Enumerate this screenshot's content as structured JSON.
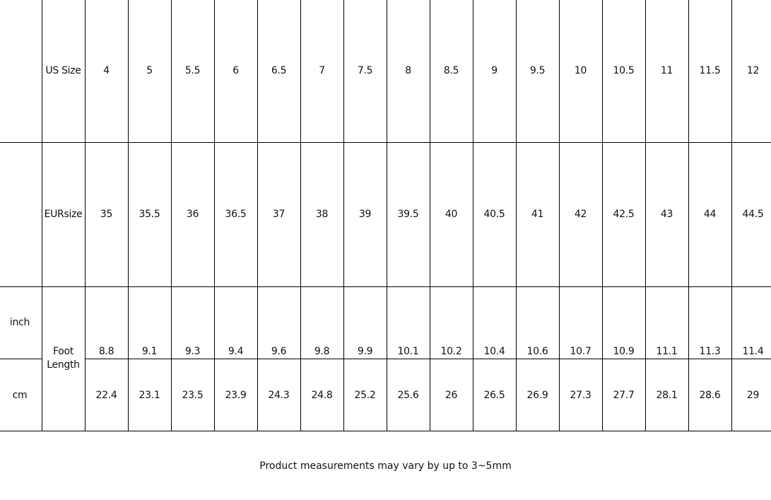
{
  "table": {
    "rows": [
      {
        "label": "US Size",
        "values": [
          "4",
          "5",
          "5.5",
          "6",
          "6.5",
          "7",
          "7.5",
          "8",
          "8.5",
          "9",
          "9.5",
          "10",
          "10.5",
          "11",
          "11.5",
          "12"
        ]
      },
      {
        "label": "EURsize",
        "values": [
          "35",
          "35.5",
          "36",
          "36.5",
          "37",
          "38",
          "39",
          "39.5",
          "40",
          "40.5",
          "41",
          "42",
          "42.5",
          "43",
          "44",
          "44.5"
        ]
      }
    ],
    "foot_length": {
      "label": "Foot Length",
      "inch": {
        "label": "inch",
        "values": [
          "8.8",
          "9.1",
          "9.3",
          "9.4",
          "9.6",
          "9.8",
          "9.9",
          "10.1",
          "10.2",
          "10.4",
          "10.6",
          "10.7",
          "10.9",
          "11.1",
          "11.3",
          "11.4"
        ]
      },
      "cm": {
        "label": "cm",
        "values": [
          "22.4",
          "23.1",
          "23.5",
          "23.9",
          "24.3",
          "24.8",
          "25.2",
          "25.6",
          "26",
          "26.5",
          "26.9",
          "27.3",
          "27.7",
          "28.1",
          "28.6",
          "29"
        ]
      }
    }
  },
  "note": "Product measurements may vary by up to 3~5mm"
}
